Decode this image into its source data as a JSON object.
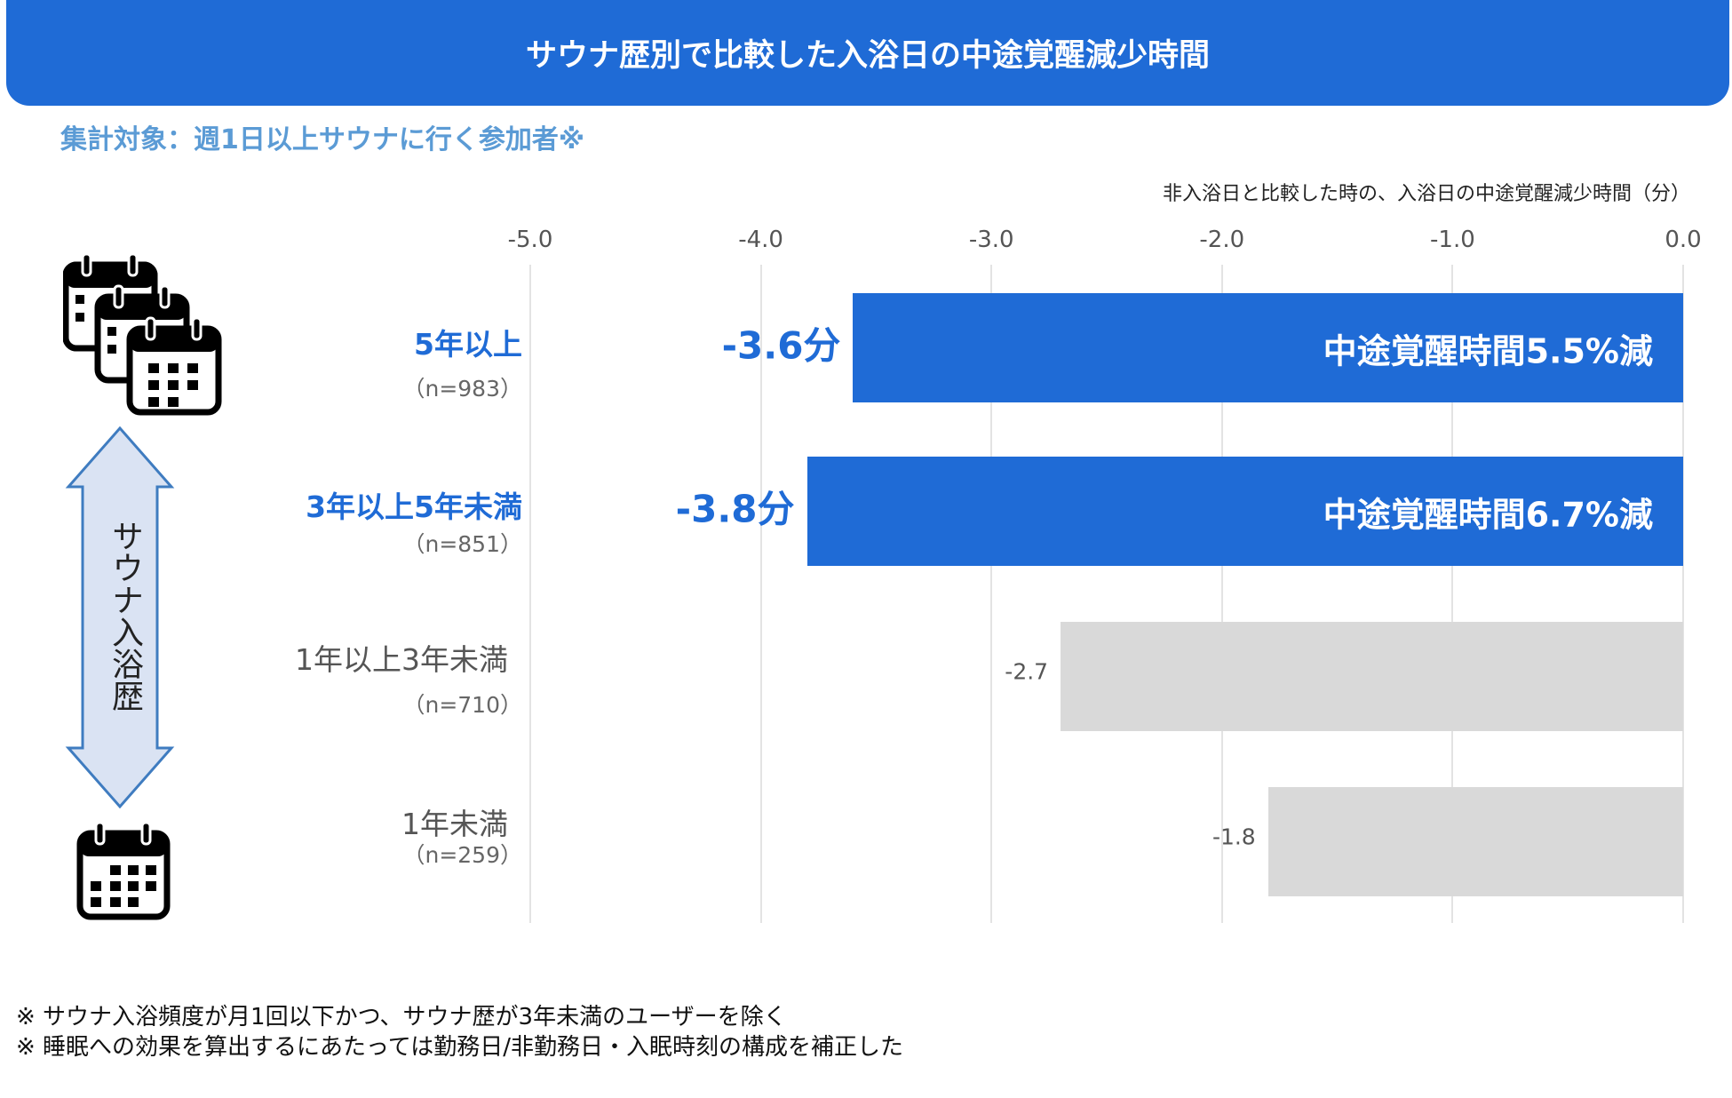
{
  "title": "サウナ歴別で比較した入浴日の中途覚醒減少時間",
  "subtitle": "集計対象：週1日以上サウナに行く参加者※",
  "side_label": "サウナ入浴歴",
  "icons": {
    "top": "multiple-calendars-icon",
    "bottom": "calendar-icon",
    "arrow": "double-arrow-vertical"
  },
  "colors": {
    "highlight": "#1f6bd6",
    "muted": "#d9d9d9",
    "subtitle": "#5b9bd5"
  },
  "chart_data": {
    "type": "bar",
    "orientation": "horizontal",
    "xlabel": "非入浴日と比較した時の、入浴日の中途覚醒減少時間（分）",
    "xlim": [
      -5.0,
      0.0
    ],
    "ticks": [
      "-5.0",
      "-4.0",
      "-3.0",
      "-2.0",
      "-1.0",
      "0.0"
    ],
    "grid": true,
    "categories": [
      {
        "label": "5年以上",
        "n": "（n=983）",
        "value": -3.6,
        "value_label": "-3.6分",
        "bar_label": "中途覚醒時間5.5%減",
        "highlight": true
      },
      {
        "label": "3年以上5年未満",
        "n": "（n=851）",
        "value": -3.8,
        "value_label": "-3.8分",
        "bar_label": "中途覚醒時間6.7%減",
        "highlight": true
      },
      {
        "label": "1年以上3年未満",
        "n": "（n=710）",
        "value": -2.7,
        "value_label": "-2.7",
        "bar_label": "",
        "highlight": false
      },
      {
        "label": "1年未満",
        "n": "（n=259）",
        "value": -1.8,
        "value_label": "-1.8",
        "bar_label": "",
        "highlight": false
      }
    ]
  },
  "footnotes": [
    "※ サウナ入浴頻度が月1回以下かつ、サウナ歴が3年未満のユーザーを除く",
    "※ 睡眠への効果を算出するにあたっては勤務日/非勤務日・入眠時刻の構成を補正した"
  ]
}
